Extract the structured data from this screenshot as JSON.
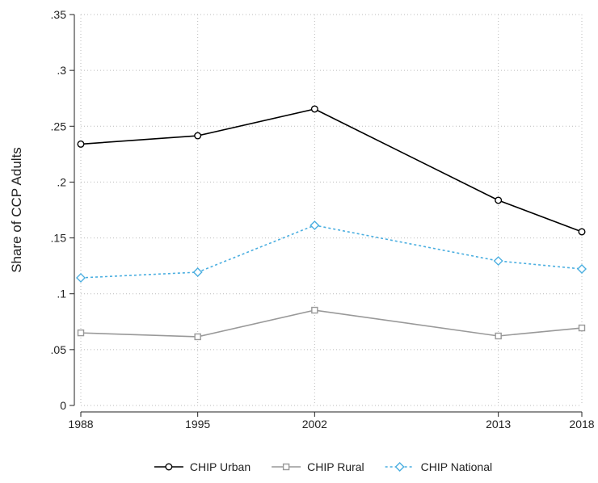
{
  "chart_data": {
    "type": "line",
    "ylabel": "Share of CCP Adults",
    "x": [
      1988,
      1995,
      2002,
      2013,
      2018
    ],
    "xlim": [
      1988,
      2018
    ],
    "xticks": [
      1988,
      1995,
      2002,
      2013,
      2018
    ],
    "ylim": [
      0,
      0.35
    ],
    "yticks": [
      0,
      {
        "value": 0.05,
        "label": ".05"
      },
      {
        "value": 0.1,
        "label": ".1"
      },
      {
        "value": 0.15,
        "label": ".15"
      },
      {
        "value": 0.2,
        "label": ".2"
      },
      {
        "value": 0.25,
        "label": ".25"
      },
      {
        "value": 0.3,
        "label": ".3"
      },
      {
        "value": 0.35,
        "label": ".35"
      }
    ],
    "grid": true,
    "legend": "bottom",
    "series": [
      {
        "name": "CHIP Urban",
        "color": "#000000",
        "marker": "circle",
        "dash": "solid",
        "values": [
          0.234,
          0.2415,
          0.2654,
          0.1837,
          0.1555
        ]
      },
      {
        "name": "CHIP Rural",
        "color": "#999999",
        "marker": "square",
        "dash": "solid",
        "values": [
          0.065,
          0.0615,
          0.0853,
          0.0622,
          0.0694
        ]
      },
      {
        "name": "CHIP National",
        "color": "#4aaee0",
        "marker": "diamond",
        "dash": "dotted",
        "values": [
          0.1143,
          0.1193,
          0.1613,
          0.1294,
          0.1222
        ]
      }
    ]
  }
}
